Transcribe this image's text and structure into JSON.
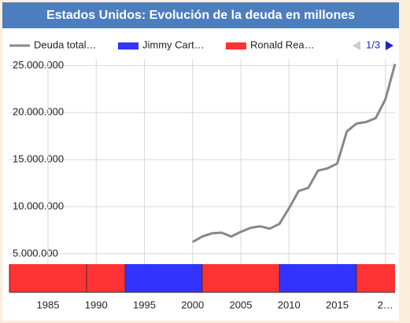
{
  "chart_data": {
    "type": "line",
    "title": "Estados Unidos: Evolución de la deuda en millones",
    "legend": [
      {
        "name": "Deuda total…",
        "color": "#888888"
      },
      {
        "name": "Jimmy Cart…",
        "color": "#3333ff"
      },
      {
        "name": "Ronald Rea…",
        "color": "#ff3333"
      }
    ],
    "legend_page": "1/3",
    "x": [
      2000,
      2001,
      2002,
      2003,
      2004,
      2005,
      2006,
      2007,
      2008,
      2009,
      2010,
      2011,
      2012,
      2013,
      2014,
      2015,
      2016,
      2017,
      2018,
      2019,
      2020,
      2021
    ],
    "series": [
      {
        "name": "Deuda total…",
        "color": "#888888",
        "values": [
          6250000,
          6830000,
          7170000,
          7250000,
          6830000,
          7330000,
          7750000,
          7920000,
          7670000,
          8170000,
          9830000,
          11670000,
          12000000,
          13830000,
          14080000,
          14580000,
          18000000,
          18830000,
          19000000,
          19420000,
          21420000,
          25170000
        ]
      }
    ],
    "bands": [
      {
        "start": 1981,
        "end": 1989,
        "value": 3900000,
        "color": "#ff3333"
      },
      {
        "start": 1989,
        "end": 1993,
        "value": 3900000,
        "color": "#ff3333"
      },
      {
        "start": 1993,
        "end": 2001,
        "value": 3900000,
        "color": "#3333ff"
      },
      {
        "start": 2001,
        "end": 2009,
        "value": 3900000,
        "color": "#ff3333"
      },
      {
        "start": 2009,
        "end": 2017,
        "value": 3900000,
        "color": "#3333ff"
      },
      {
        "start": 2017,
        "end": 2021,
        "value": 3900000,
        "color": "#ff3333"
      }
    ],
    "xlim": [
      1981,
      2021
    ],
    "xticks": [
      1985,
      1990,
      1995,
      2000,
      2005,
      2010,
      2015,
      {
        "value": 2020,
        "label": "2…"
      }
    ],
    "ylim": [
      900000,
      25700000
    ],
    "yticks": [
      {
        "value": 5000000,
        "label": "5.000.000"
      },
      {
        "value": 10000000,
        "label": "10.000.000"
      },
      {
        "value": 15000000,
        "label": "15.000.000"
      },
      {
        "value": 20000000,
        "label": "20.000.000"
      },
      {
        "value": 25000000,
        "label": "25.000.000"
      }
    ],
    "grid": true
  }
}
